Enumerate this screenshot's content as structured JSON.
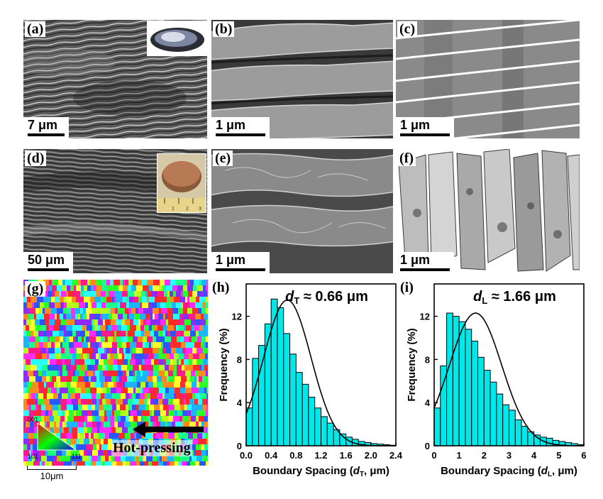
{
  "panels": [
    {
      "tag": "(a)",
      "scale": "7 μm"
    },
    {
      "tag": "(b)",
      "scale": "1 μm"
    },
    {
      "tag": "(c)",
      "scale": "1 μm"
    },
    {
      "tag": "(d)",
      "scale": "50 μm"
    },
    {
      "tag": "(e)",
      "scale": "1 μm"
    },
    {
      "tag": "(f)",
      "scale": "1 μm"
    },
    {
      "tag": "(g)",
      "scale": "10μm"
    },
    {
      "tag": "(h)"
    },
    {
      "tag": "(i)"
    }
  ],
  "ebsd": {
    "arrow_label": "Hot-pressing",
    "key_labels": {
      "top": "001",
      "bottom_left": "101",
      "bottom_right": "111"
    }
  },
  "ruler_ticks": [
    "1",
    "2",
    "3"
  ],
  "chart_data": [
    {
      "type": "bar",
      "panel": "(h)",
      "annotation_symbol": "d",
      "annotation_sub": "T",
      "annotation_value": " ≈ 0.66 μm",
      "xlabel": "Boundary Spacing (d_T, μm)",
      "xlabel_parts": {
        "pre": "Boundary Spacing (",
        "sym": "d",
        "sub": "T",
        "post": ", μm)"
      },
      "ylabel": "Frequency (%)",
      "xlim": [
        0,
        2.4
      ],
      "ylim": [
        0,
        15
      ],
      "xticks": [
        "0.0",
        "0.4",
        "0.8",
        "1.2",
        "1.6",
        "2.0",
        "2.4"
      ],
      "yticks": [
        "0",
        "4",
        "8",
        "12"
      ],
      "bin_width": 0.1,
      "bin_start": 0.0,
      "values": [
        3.5,
        8.1,
        9.3,
        11.3,
        13.6,
        12.8,
        10.4,
        8.5,
        6.8,
        5.7,
        4.5,
        3.5,
        2.7,
        2.1,
        1.5,
        1.1,
        0.8,
        0.6,
        0.4,
        0.3,
        0.2,
        0.15,
        0.1,
        0.05
      ],
      "fit": {
        "kind": "gaussian",
        "mean": 0.66,
        "peak": 13.5,
        "sigma": 0.38
      },
      "colors": {
        "bars": "#00e8ea",
        "fit": "#000000"
      }
    },
    {
      "type": "bar",
      "panel": "(i)",
      "annotation_symbol": "d",
      "annotation_sub": "L",
      "annotation_value": " ≈ 1.66 μm",
      "xlabel": "Boundary Spacing (d_L, μm)",
      "xlabel_parts": {
        "pre": "Boundary Spacing (",
        "sym": "d",
        "sub": "L",
        "post": ", μm)"
      },
      "ylabel": "Frequency (%)",
      "xlim": [
        0,
        6
      ],
      "ylim": [
        0,
        15
      ],
      "xticks": [
        "0",
        "1",
        "2",
        "3",
        "4",
        "5",
        "6"
      ],
      "yticks": [
        "0",
        "4",
        "8",
        "12"
      ],
      "bin_width": 0.25,
      "bin_start": 0.0,
      "values": [
        3.5,
        7.4,
        12.3,
        12.0,
        11.5,
        10.8,
        9.7,
        8.2,
        7.0,
        5.9,
        4.8,
        3.8,
        3.3,
        2.4,
        1.8,
        1.3,
        1.0,
        0.8,
        0.7,
        0.5,
        0.4,
        0.3,
        0.2,
        0.1
      ],
      "fit": {
        "kind": "gaussian",
        "mean": 1.66,
        "peak": 12.3,
        "sigma": 1.05
      },
      "colors": {
        "bars": "#00e8ea",
        "fit": "#000000"
      }
    }
  ]
}
